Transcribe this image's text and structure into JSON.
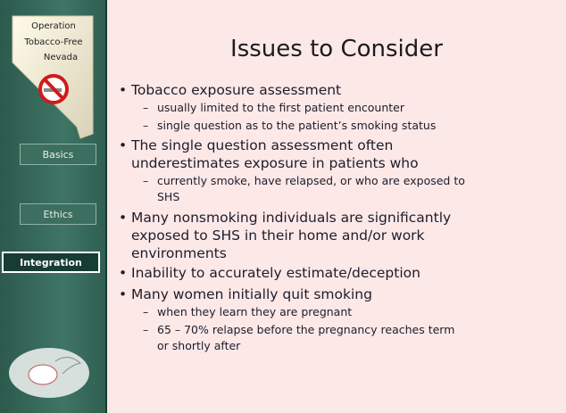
{
  "sidebar": {
    "logo": [
      "Operation",
      "Tobacco-Free",
      "Nevada"
    ],
    "nav": [
      "Basics",
      "Ethics",
      "Integration"
    ]
  },
  "title": "Issues to Consider",
  "bullets": [
    {
      "lines": [
        "Tobacco exposure assessment"
      ],
      "subs": [
        [
          "usually limited to the first patient encounter"
        ],
        [
          "single question as to the patient’s smoking status"
        ]
      ]
    },
    {
      "lines": [
        "The single question assessment often",
        "underestimates exposure in patients who"
      ],
      "subs": [
        [
          "currently smoke, have relapsed, or who are exposed to",
          "SHS"
        ]
      ]
    },
    {
      "lines": [
        "Many nonsmoking individuals are significantly",
        "exposed to SHS in their home and/or work",
        "environments"
      ],
      "subs": []
    },
    {
      "lines": [
        "Inability to accurately estimate/deception"
      ],
      "subs": []
    },
    {
      "lines": [
        "Many women initially quit smoking"
      ],
      "subs": [
        [
          "when they learn they are pregnant"
        ],
        [
          "65 – 70% relapse before the pregnancy reaches term",
          "or shortly after"
        ]
      ]
    }
  ]
}
